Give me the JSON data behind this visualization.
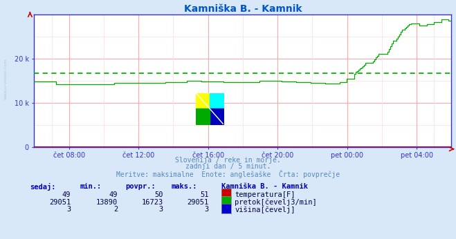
{
  "title": "Kamniška B. - Kamnik",
  "title_color": "#0055cc",
  "bg_color": "#d8e8f8",
  "plot_bg_color": "#ffffff",
  "grid_color_major": "#ffaaaa",
  "grid_color_minor": "#ffe0e0",
  "xlabel_ticks": [
    "čet 08:00",
    "čet 12:00",
    "čet 16:00",
    "čet 20:00",
    "pet 00:00",
    "pet 04:00"
  ],
  "ylim": [
    0,
    30000
  ],
  "ytick_labels": [
    "0",
    "10 k",
    "20 k"
  ],
  "ytick_values": [
    0,
    10000,
    20000
  ],
  "avg_line_value": 16723,
  "avg_line_color": "#00bb00",
  "temp_color": "#cc0000",
  "flow_color": "#00aa00",
  "height_color": "#0000cc",
  "subtitle_color": "#5588bb",
  "subtitle_lines": [
    "Slovenija / reke in morje.",
    "zadnji dan / 5 minut.",
    "Meritve: maksimalne  Enote: anglešaške  Črta: povprečje"
  ],
  "table_header_color": "#0000bb",
  "legend_title": "Kamniška B. - Kamnik",
  "sedaj": [
    49,
    29051,
    3
  ],
  "min_val": [
    49,
    13890,
    2
  ],
  "povpr": [
    50,
    16723,
    3
  ],
  "maks": [
    51,
    29051,
    3
  ],
  "legend_labels": [
    "temperatura[F]",
    "pretok[čevelj3/min]",
    "višina[čevelj]"
  ],
  "legend_colors": [
    "#cc0000",
    "#00aa00",
    "#0000cc"
  ],
  "spine_color": "#3333cc",
  "tick_color": "#3333cc",
  "watermark_text": "www.si-vreme.com",
  "watermark_color": "#b0c8e0"
}
